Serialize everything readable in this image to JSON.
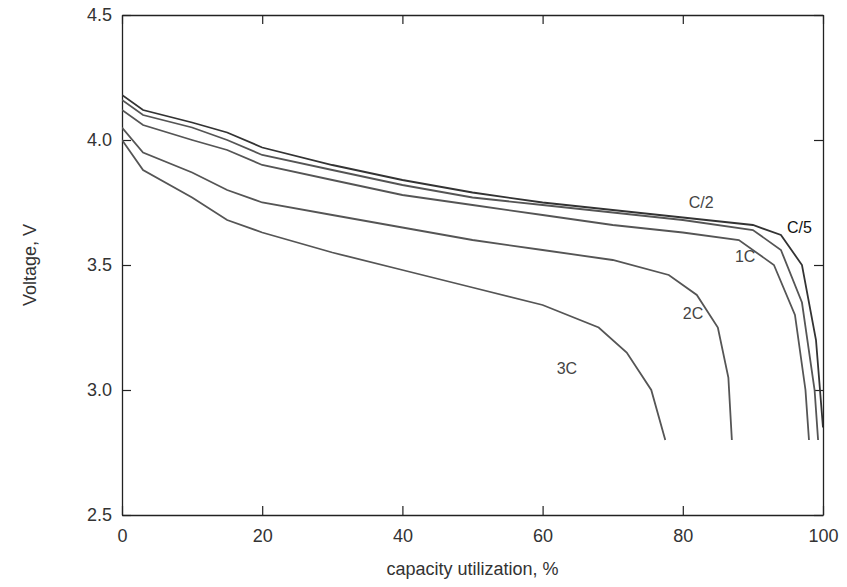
{
  "chart_data": {
    "type": "line",
    "x_label": "capacity utilization, %",
    "y_label": "Voltage, V",
    "xlim": [
      0,
      100
    ],
    "xticks": [
      0,
      20,
      40,
      60,
      80,
      100
    ],
    "ylim": [
      2.5,
      4.5
    ],
    "yticks": [
      2.5,
      {
        "value": 3,
        "label": "3.0"
      },
      3.5,
      {
        "value": 4,
        "label": "4.0"
      },
      4.5
    ],
    "grid": false,
    "series": [
      {
        "name": "C/5",
        "color": "#333333",
        "x": [
          0,
          3,
          10,
          15,
          20,
          30,
          40,
          50,
          60,
          70,
          80,
          90,
          94,
          97,
          99,
          100
        ],
        "values": [
          4.18,
          4.12,
          4.07,
          4.03,
          3.97,
          3.9,
          3.84,
          3.79,
          3.75,
          3.72,
          3.69,
          3.66,
          3.62,
          3.5,
          3.2,
          2.85
        ]
      },
      {
        "name": "C/2",
        "color": "#555555",
        "x": [
          0,
          3,
          10,
          15,
          20,
          30,
          40,
          50,
          60,
          70,
          80,
          90,
          94,
          97,
          98.8,
          99.3
        ],
        "values": [
          4.16,
          4.1,
          4.05,
          4.0,
          3.94,
          3.88,
          3.82,
          3.77,
          3.74,
          3.71,
          3.68,
          3.64,
          3.56,
          3.35,
          3.0,
          2.8
        ]
      },
      {
        "name": "1C",
        "color": "#555555",
        "x": [
          0,
          3,
          10,
          15,
          20,
          30,
          40,
          50,
          60,
          70,
          80,
          88,
          93,
          96,
          97.5,
          98
        ],
        "values": [
          4.12,
          4.06,
          4.0,
          3.96,
          3.9,
          3.84,
          3.78,
          3.74,
          3.7,
          3.66,
          3.63,
          3.6,
          3.5,
          3.3,
          3.0,
          2.8
        ]
      },
      {
        "name": "2C",
        "color": "#555555",
        "x": [
          0,
          3,
          10,
          15,
          20,
          30,
          40,
          50,
          60,
          70,
          78,
          82,
          85,
          86.5,
          87
        ],
        "values": [
          4.05,
          3.95,
          3.87,
          3.8,
          3.75,
          3.7,
          3.65,
          3.6,
          3.56,
          3.52,
          3.46,
          3.38,
          3.25,
          3.05,
          2.8
        ]
      },
      {
        "name": "3C",
        "color": "#555555",
        "x": [
          0,
          3,
          10,
          15,
          20,
          30,
          40,
          50,
          60,
          68,
          72,
          75.5,
          77.5
        ],
        "values": [
          4.0,
          3.88,
          3.77,
          3.68,
          3.63,
          3.55,
          3.48,
          3.41,
          3.34,
          3.25,
          3.15,
          3.0,
          2.8
        ]
      }
    ]
  }
}
